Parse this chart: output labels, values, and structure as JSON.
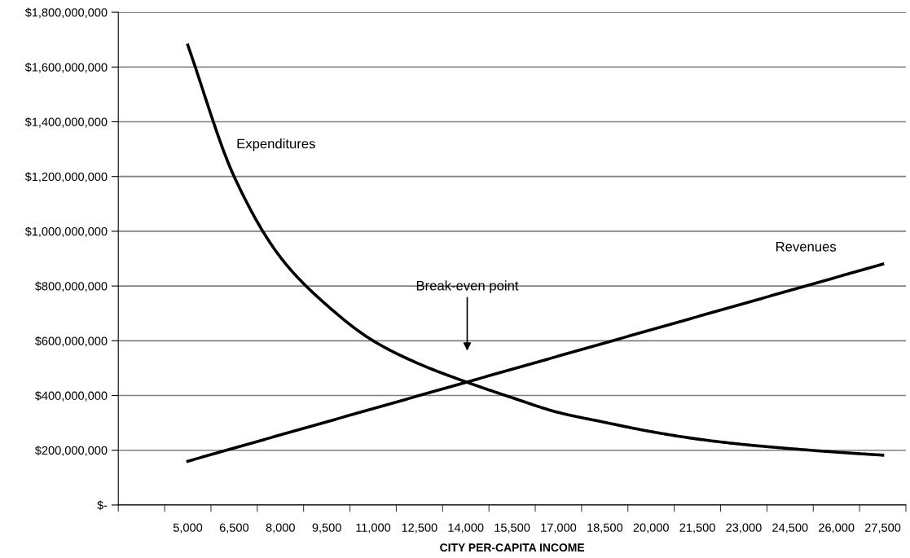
{
  "chart_data": {
    "type": "line",
    "xlabel": "CITY PER-CAPITA INCOME",
    "categories": [
      null,
      "5,000",
      "6,500",
      "8,000",
      "9,500",
      "11,000",
      "12,500",
      "14,000",
      "15,500",
      "17,000",
      "18,500",
      "20,000",
      "21,500",
      "23,000",
      "24,500",
      "26,000",
      "27,500"
    ],
    "series": [
      {
        "name": "Expenditures",
        "color": "#000000",
        "values": [
          null,
          1680000000,
          1200000000,
          905000000,
          730000000,
          600000000,
          515000000,
          450000000,
          392000000,
          338000000,
          302000000,
          268000000,
          241000000,
          221000000,
          206000000,
          193000000,
          182000000
        ]
      },
      {
        "name": "Revenues",
        "color": "#000000",
        "values": [
          null,
          160000000,
          208000000,
          256000000,
          304000000,
          352000000,
          400000000,
          448000000,
          496000000,
          544000000,
          592000000,
          640000000,
          688000000,
          736000000,
          784000000,
          832000000,
          880000000
        ]
      }
    ],
    "ylim": [
      0,
      1800000000
    ],
    "yticks": [
      {
        "value": 0,
        "label": "$-"
      },
      {
        "value": 200000000,
        "label": "$200,000,000"
      },
      {
        "value": 400000000,
        "label": "$400,000,000"
      },
      {
        "value": 600000000,
        "label": "$600,000,000"
      },
      {
        "value": 800000000,
        "label": "$800,000,000"
      },
      {
        "value": 1000000000,
        "label": "$1,000,000,000"
      },
      {
        "value": 1200000000,
        "label": "$1,200,000,000"
      },
      {
        "value": 1400000000,
        "label": "$1,400,000,000"
      },
      {
        "value": 1600000000,
        "label": "$1,600,000,000"
      },
      {
        "value": 1800000000,
        "label": "$1,800,000,000"
      }
    ],
    "annotations": [
      "Break-even point"
    ],
    "grid": "y",
    "legend": false,
    "marker": "none",
    "line_style": "solid"
  }
}
